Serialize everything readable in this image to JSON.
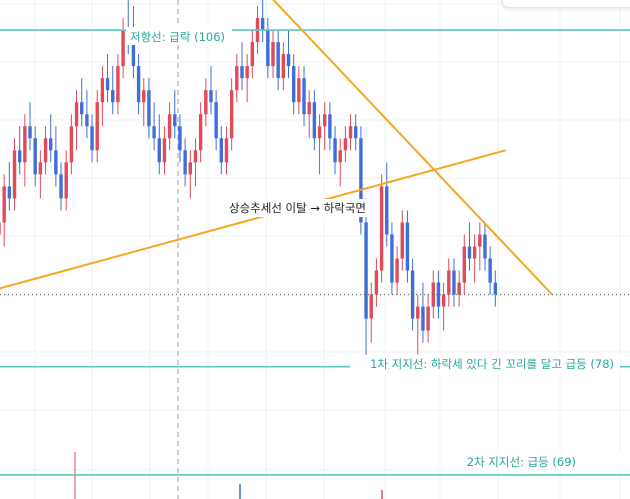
{
  "colors": {
    "teal": "#5ac8bd",
    "label_teal": "#26a69a",
    "orange": "#f5a623",
    "up": "#e04b5a",
    "down": "#3f6fd6",
    "grid": "#eef1f5",
    "text": "#222222"
  },
  "annotations": {
    "resistance": "저항선: 급락 (106)",
    "support1": "1차 지지선: 하락세 있다 긴 꼬리를 달고 급등 (78)",
    "support2": "2차 지지선: 급등 (69)",
    "breakdown": "상승추세선 이탈 → 하락국면"
  },
  "chart_data": {
    "type": "candlestick",
    "title": "",
    "xlabel": "",
    "ylabel": "",
    "ylim": [
      67,
      108.5
    ],
    "horizontal_levels": [
      {
        "label": "저항선: 급락",
        "value": 106
      },
      {
        "label": "1차 지지선: 하락세 있다 긴 꼬리를 달고 급등",
        "value": 78
      },
      {
        "label": "2차 지지선: 급등",
        "value": 69
      }
    ],
    "trendlines": [
      {
        "name": "rising",
        "from": [
          0,
          84.5
        ],
        "to": [
          98,
          96
        ]
      },
      {
        "name": "falling",
        "from": [
          52,
          109
        ],
        "to": [
          107,
          84
        ]
      }
    ],
    "last_price": 84,
    "candles": [
      [
        89,
        91,
        87,
        90
      ],
      [
        90,
        94,
        88,
        93
      ],
      [
        93,
        95,
        91,
        92
      ],
      [
        92,
        97,
        91,
        96
      ],
      [
        96,
        98,
        94,
        95
      ],
      [
        95,
        99,
        93,
        98
      ],
      [
        98,
        100,
        96,
        97
      ],
      [
        97,
        98,
        93,
        94
      ],
      [
        94,
        96,
        92,
        95
      ],
      [
        95,
        98,
        94,
        97
      ],
      [
        97,
        99,
        95,
        96
      ],
      [
        96,
        98,
        93,
        94
      ],
      [
        94,
        95,
        91,
        92
      ],
      [
        92,
        96,
        91,
        95
      ],
      [
        95,
        99,
        94,
        98
      ],
      [
        98,
        101,
        96,
        100
      ],
      [
        100,
        102,
        98,
        99
      ],
      [
        99,
        101,
        97,
        98
      ],
      [
        98,
        99,
        95,
        96
      ],
      [
        96,
        101,
        95,
        100
      ],
      [
        100,
        103,
        98,
        102
      ],
      [
        102,
        104,
        100,
        101
      ],
      [
        101,
        103,
        99,
        100
      ],
      [
        100,
        104,
        99,
        103
      ],
      [
        103,
        107,
        102,
        106
      ],
      [
        106,
        109,
        104,
        105
      ],
      [
        105,
        108,
        102,
        103
      ],
      [
        103,
        104,
        99,
        100
      ],
      [
        100,
        102,
        98,
        101
      ],
      [
        101,
        102,
        97,
        98
      ],
      [
        98,
        100,
        96,
        97
      ],
      [
        97,
        99,
        94,
        95
      ],
      [
        95,
        98,
        94,
        97
      ],
      [
        97,
        100,
        96,
        99
      ],
      [
        99,
        101,
        97,
        98
      ],
      [
        98,
        99,
        95,
        96
      ],
      [
        96,
        97,
        93,
        94
      ],
      [
        94,
        96,
        92,
        95
      ],
      [
        95,
        97,
        93,
        96
      ],
      [
        96,
        100,
        95,
        99
      ],
      [
        99,
        102,
        98,
        101
      ],
      [
        101,
        103,
        99,
        100
      ],
      [
        100,
        101,
        96,
        97
      ],
      [
        97,
        98,
        94,
        95
      ],
      [
        95,
        98,
        94,
        97
      ],
      [
        97,
        102,
        96,
        101
      ],
      [
        101,
        104,
        100,
        103
      ],
      [
        103,
        105,
        101,
        102
      ],
      [
        102,
        104,
        100,
        103
      ],
      [
        103,
        106,
        102,
        105
      ],
      [
        105,
        108,
        104,
        107
      ],
      [
        107,
        109,
        105,
        106
      ],
      [
        106,
        107,
        102,
        103
      ],
      [
        103,
        106,
        102,
        105
      ],
      [
        105,
        106,
        101,
        102
      ],
      [
        102,
        105,
        101,
        104
      ],
      [
        104,
        106,
        102,
        103
      ],
      [
        103,
        104,
        99,
        100
      ],
      [
        100,
        103,
        99,
        102
      ],
      [
        102,
        103,
        98,
        99
      ],
      [
        99,
        101,
        97,
        100
      ],
      [
        100,
        101,
        96,
        97
      ],
      [
        97,
        99,
        94,
        98
      ],
      [
        98,
        100,
        96,
        99
      ],
      [
        99,
        100,
        96,
        97
      ],
      [
        97,
        98,
        94,
        95
      ],
      [
        95,
        97,
        93,
        96
      ],
      [
        96,
        98,
        95,
        97
      ],
      [
        97,
        99,
        96,
        98
      ],
      [
        98,
        99,
        96,
        97
      ],
      [
        97,
        98,
        89,
        90
      ],
      [
        90,
        92,
        78,
        82
      ],
      [
        82,
        85,
        80,
        84
      ],
      [
        84,
        87,
        83,
        86
      ],
      [
        86,
        94,
        85,
        93
      ],
      [
        93,
        95,
        88,
        89
      ],
      [
        89,
        90,
        84,
        85
      ],
      [
        85,
        88,
        84,
        87
      ],
      [
        87,
        91,
        86,
        90
      ],
      [
        90,
        91,
        85,
        86
      ],
      [
        86,
        87,
        81,
        82
      ],
      [
        82,
        84,
        79,
        83
      ],
      [
        83,
        85,
        80,
        81
      ],
      [
        81,
        84,
        80,
        83
      ],
      [
        83,
        86,
        82,
        85
      ],
      [
        85,
        86,
        82,
        83
      ],
      [
        83,
        85,
        81,
        84
      ],
      [
        84,
        87,
        83,
        86
      ],
      [
        86,
        87,
        83,
        84
      ],
      [
        84,
        86,
        83,
        85
      ],
      [
        85,
        89,
        84,
        88
      ],
      [
        88,
        90,
        86,
        87
      ],
      [
        87,
        89,
        85,
        88
      ],
      [
        88,
        90,
        86,
        89
      ],
      [
        89,
        90,
        86,
        87
      ],
      [
        87,
        88,
        84,
        85
      ],
      [
        85,
        86,
        83,
        84
      ]
    ]
  }
}
